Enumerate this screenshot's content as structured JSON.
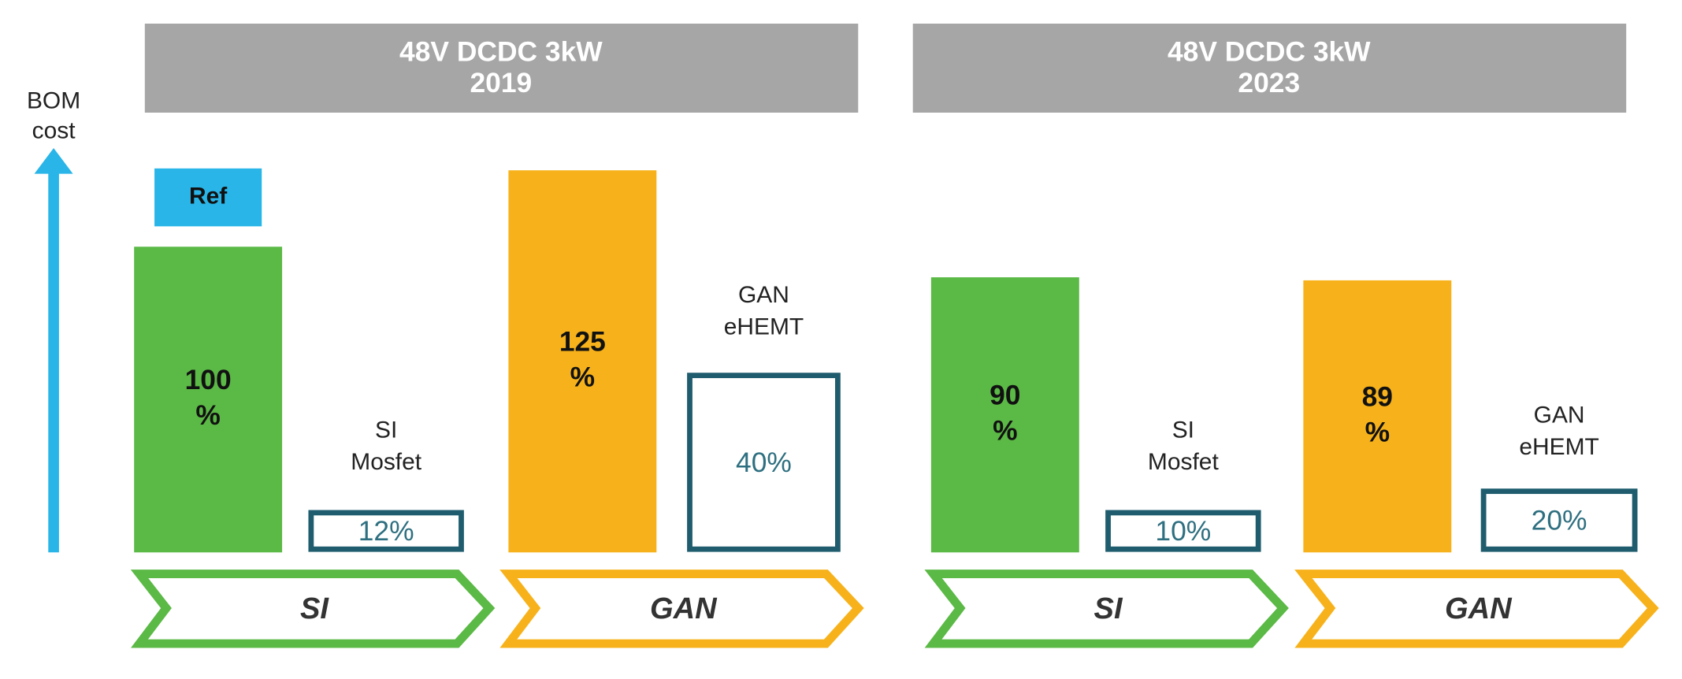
{
  "chart_data": {
    "type": "bar",
    "y_label": [
      "BOM",
      "cost"
    ],
    "panels": [
      {
        "title": [
          "48V DCDC 3kW",
          "2019"
        ],
        "groups": [
          {
            "category": "SI",
            "color": "#5bb946",
            "value": 100,
            "value_label": [
              "100",
              "%"
            ],
            "annotation": "Ref",
            "component": {
              "name": [
                "SI",
                "Mosfet"
              ],
              "value": 12,
              "value_label": "12%"
            }
          },
          {
            "category": "GAN",
            "color": "#f7b21b",
            "value": 125,
            "value_label": [
              "125",
              "%"
            ],
            "component": {
              "name": [
                "GAN",
                "eHEMT"
              ],
              "value": 40,
              "value_label": "40%"
            }
          }
        ]
      },
      {
        "title": [
          "48V DCDC 3kW",
          "2023"
        ],
        "groups": [
          {
            "category": "SI",
            "color": "#5bb946",
            "value": 90,
            "value_label": [
              "90",
              "%"
            ],
            "component": {
              "name": [
                "SI",
                "Mosfet"
              ],
              "value": 10,
              "value_label": "10%"
            }
          },
          {
            "category": "GAN",
            "color": "#f7b21b",
            "value": 89,
            "value_label": [
              "89",
              "%"
            ],
            "component": {
              "name": [
                "GAN",
                "eHEMT"
              ],
              "value": 20,
              "value_label": "20%"
            }
          }
        ]
      }
    ]
  }
}
